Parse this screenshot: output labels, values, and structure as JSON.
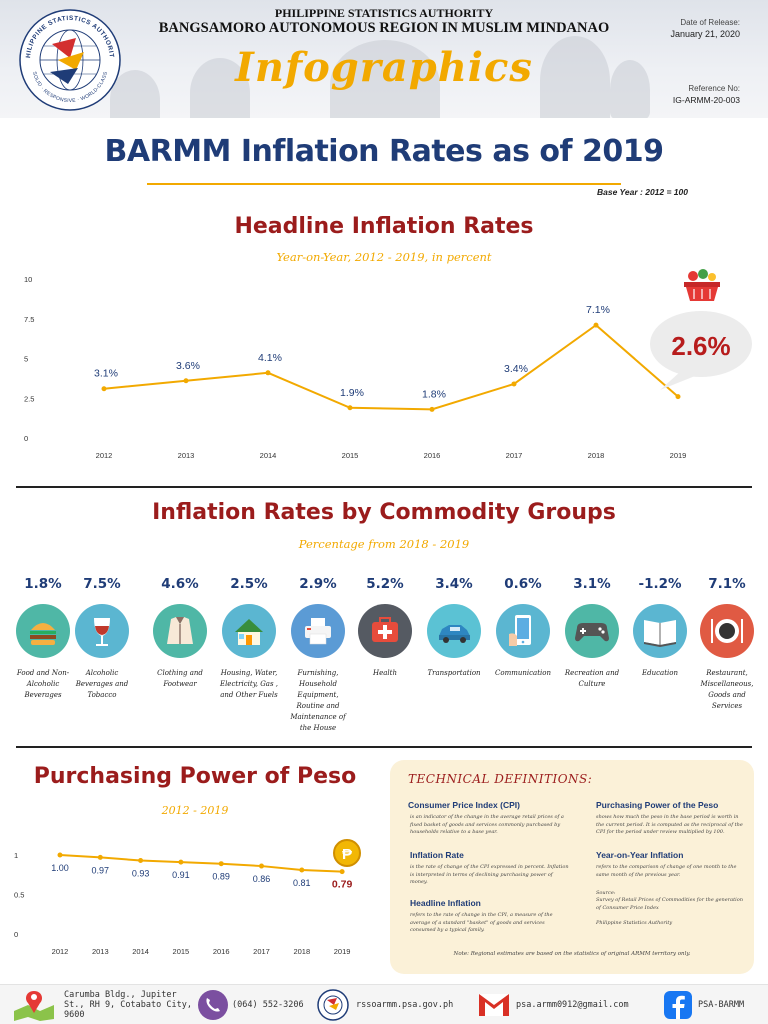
{
  "header": {
    "agency": "PHILIPPINE STATISTICS AUTHORITY",
    "region": "BANGSAMORO AUTONOMOUS REGION IN MUSLIM MINDANAO",
    "doc_type": "Infographics",
    "release_label": "Date of Release:",
    "release_date": "January 21,  2020",
    "reference_label": "Reference No:",
    "reference_no": "IG-ARMM-20-003",
    "logo_text": "PHILIPPINE STATISTICS AUTHORITY",
    "logo_tagline": "SOLID · RESPONSIVE · WORLD-CLASS"
  },
  "title": "BARMM Inflation Rates as of 2019",
  "base_year": "Base Year : 2012 = 100",
  "headline": {
    "title": "Headline Inflation Rates",
    "subtitle": "Year-on-Year, 2012 - 2019, in percent",
    "highlight": "2.6%"
  },
  "commodity": {
    "title": "Inflation Rates by Commodity Groups",
    "subtitle": "Percentage from 2018 - 2019"
  },
  "purchasing": {
    "title": "Purchasing Power of Peso",
    "subtitle": "2012 - 2019"
  },
  "chart_data": [
    {
      "type": "line",
      "x": [
        "2012",
        "2013",
        "2014",
        "2015",
        "2016",
        "2017",
        "2018",
        "2019"
      ],
      "values": [
        3.1,
        3.6,
        4.1,
        1.9,
        1.8,
        3.4,
        7.1,
        2.6
      ],
      "labels": [
        "3.1%",
        "3.6%",
        "4.1%",
        "1.9%",
        "1.8%",
        "3.4%",
        "7.1%",
        ""
      ],
      "yticks": [
        "0",
        "2.5",
        "5",
        "7.5",
        "10"
      ],
      "ylim": [
        0,
        10
      ],
      "color": "#f2a900"
    },
    {
      "type": "bar",
      "categories": [
        "Food and Non-Alcoholic Beverages",
        "Alcoholic Beverages and Tobacco",
        "Clothing and Footwear",
        "Housing, Water, Electricity, Gas , and Other Fuels",
        "Furnishing, Household Equipment, Routine and Maintenance of the House",
        "Health",
        "Transportation",
        "Communication",
        "Recreation and Culture",
        "Education",
        "Restaurant, Miscellaneous, Goods and Services"
      ],
      "values": [
        1.8,
        7.5,
        4.6,
        2.5,
        2.9,
        5.2,
        3.4,
        0.6,
        3.1,
        -1.2,
        7.1
      ],
      "labels": [
        "1.8%",
        "7.5%",
        "4.6%",
        "2.5%",
        "2.9%",
        "5.2%",
        "3.4%",
        "0.6%",
        "3.1%",
        "-1.2%",
        "7.1%"
      ],
      "icons": [
        "burger-icon",
        "wine-glass-icon",
        "jacket-icon",
        "house-icon",
        "printer-icon",
        "medical-kit-icon",
        "car-icon",
        "smartphone-icon",
        "gamepad-icon",
        "book-icon",
        "dinner-plate-icon"
      ],
      "colors": [
        "#4fb7a6",
        "#5bb6d1",
        "#4fb7a6",
        "#5bb6d1",
        "#5b9bd5",
        "#555a62",
        "#5bc2d4",
        "#5bb6d1",
        "#4fb7a6",
        "#5bb6d1",
        "#e05a43"
      ]
    },
    {
      "type": "line",
      "x": [
        "2012",
        "2013",
        "2014",
        "2015",
        "2016",
        "2017",
        "2018",
        "2019"
      ],
      "values": [
        1.0,
        0.97,
        0.93,
        0.91,
        0.89,
        0.86,
        0.81,
        0.79
      ],
      "labels": [
        "1.00",
        "0.97",
        "0.93",
        "0.91",
        "0.89",
        "0.86",
        "0.81",
        "0.79"
      ],
      "yticks": [
        "0",
        "0.5",
        "1"
      ],
      "ylim": [
        0,
        1
      ],
      "color": "#f2a900",
      "highlight_color": "#9b1c1c"
    }
  ],
  "technical": {
    "title": "TECHNICAL DEFINITIONS:",
    "cpi_term": "Consumer Price Index (CPI)",
    "cpi_def": "is an indicator of the change in the average retail prices of a fixed basket of goods and services commonly purchased by households relative to a base year.",
    "infl_term": "Inflation Rate",
    "infl_def": "is the rate of change of the CPI expressed in percent. Inflation is interpreted in terms of declining purchasing power of money.",
    "head_term": "Headline Inflation",
    "head_def": "refers to the rate of change in the CPI, a measure of the average of a standard \"basket\" of goods and services consumed by a typical family.",
    "ppp_term": "Purchasing Power of the Peso",
    "ppp_def": "shows how much the peso in the base period is worth in the current period. It is computed as the reciprocal of the CPI for the period under review multiplied by 100.",
    "yoy_term": "Year-on-Year Inflation",
    "yoy_def": "refers to the comparison of change of one month to the same month of the previous year.",
    "source_label": "Source:",
    "source_text": "Survey of Retail Prices of Commodities for the generation of Consumer Price Index",
    "source_org": "Philippine Statistics Authority",
    "note": "Note: Regional estimates are based on the statistics of original ARMM territory only."
  },
  "footer": {
    "address": "Carumba Bldg., Jupiter St., RH 9, Cotabato City, 9600",
    "phone": "(064) 552-3206",
    "website": "rssoarmm.psa.gov.ph",
    "email": "psa.armm0912@gmail.com",
    "facebook": "PSA-BARMM"
  }
}
